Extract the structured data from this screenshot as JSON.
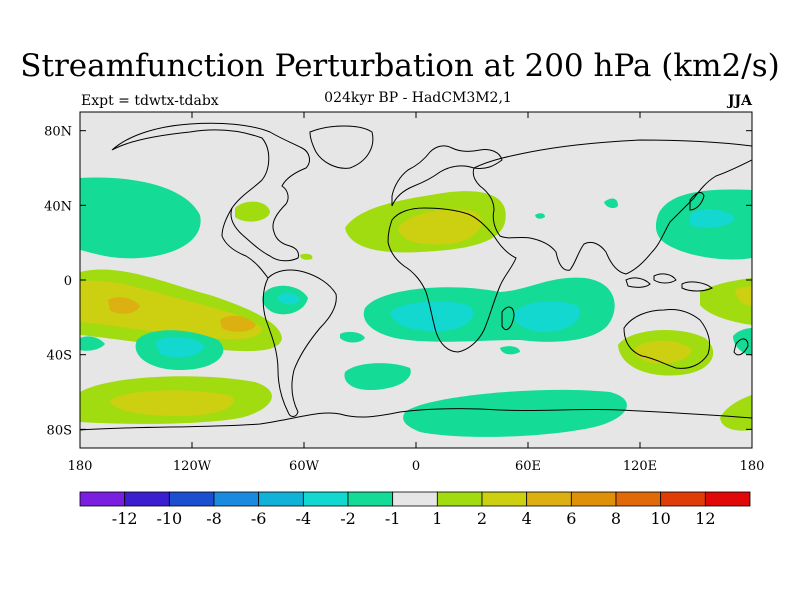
{
  "chart_data": {
    "type": "heatmap",
    "title": "Streamfunction Perturbation at 200 hPa (km2/s)",
    "subtitle": "024kyr BP - HadCM3M2,1",
    "experiment": "Expt = tdwtx-tdabx",
    "season": "JJA",
    "projection": "cylindrical equidistant",
    "lon_range": [
      -180,
      180
    ],
    "lat_range": [
      -90,
      90
    ],
    "x_ticks": [
      {
        "lon": -180,
        "label": "180"
      },
      {
        "lon": -120,
        "label": "120W"
      },
      {
        "lon": -60,
        "label": "60W"
      },
      {
        "lon": 0,
        "label": "0"
      },
      {
        "lon": 60,
        "label": "60E"
      },
      {
        "lon": 120,
        "label": "120E"
      },
      {
        "lon": 180,
        "label": "180"
      }
    ],
    "y_ticks": [
      {
        "lat": 80,
        "label": "80N"
      },
      {
        "lat": 40,
        "label": "40N"
      },
      {
        "lat": 0,
        "label": "0"
      },
      {
        "lat": -40,
        "label": "40S"
      },
      {
        "lat": -80,
        "label": "80S"
      }
    ],
    "colorbar": {
      "colors": [
        "#7a1fe0",
        "#3a1ed0",
        "#1c4fd0",
        "#1a8ae0",
        "#10b2d8",
        "#12d8d0",
        "#14dc96",
        "#e6e6e6",
        "#a0dc10",
        "#ccd010",
        "#dcb010",
        "#e09008",
        "#e06a08",
        "#e03c08",
        "#e00808"
      ],
      "labels": [
        {
          "value": -12,
          "label": "-12",
          "after_index": 1
        },
        {
          "value": -10,
          "label": "-10",
          "after_index": 2
        },
        {
          "value": -8,
          "label": "-8",
          "after_index": 3
        },
        {
          "value": -6,
          "label": "-6",
          "after_index": 4
        },
        {
          "value": -4,
          "label": "-4",
          "after_index": 5
        },
        {
          "value": -2,
          "label": "-2",
          "after_index": 6
        },
        {
          "value": -1,
          "label": "-1",
          "after_index": 7
        },
        {
          "value": 1,
          "label": "1",
          "after_index": 8
        },
        {
          "value": 2,
          "label": "2",
          "after_index": 9
        },
        {
          "value": 4,
          "label": "4",
          "after_index": 10
        },
        {
          "value": 6,
          "label": "6",
          "after_index": 11
        },
        {
          "value": 8,
          "label": "8",
          "after_index": 12
        },
        {
          "value": 10,
          "label": "10",
          "after_index": 13
        },
        {
          "value": 12,
          "label": "12",
          "after_index": 14
        }
      ]
    },
    "anomaly_centers": [
      {
        "name": "nw-atlantic-positive",
        "lon": -10,
        "lat": 28,
        "value": 1.5,
        "sign": "positive"
      },
      {
        "name": "mediterranean-positive",
        "lon": 15,
        "lat": 25,
        "value": 2.5,
        "sign": "positive"
      },
      {
        "name": "tropical-atlantic-africa-negative",
        "lon": 20,
        "lat": -18,
        "value": -3,
        "sign": "negative"
      },
      {
        "name": "indian-ocean-negative",
        "lon": 75,
        "lat": -15,
        "value": -3,
        "sign": "negative"
      },
      {
        "name": "east-pacific-positive-west",
        "lon": -160,
        "lat": -14,
        "value": 5,
        "sign": "positive"
      },
      {
        "name": "east-pacific-positive-east",
        "lon": -100,
        "lat": -22,
        "value": 5,
        "sign": "positive"
      },
      {
        "name": "south-pacific-negative",
        "lon": -130,
        "lat": -37,
        "value": -3,
        "sign": "negative"
      },
      {
        "name": "southern-ocean-positive",
        "lon": -140,
        "lat": -65,
        "value": 3,
        "sign": "positive"
      },
      {
        "name": "antarctic-negative",
        "lon": 50,
        "lat": -65,
        "value": -1.5,
        "sign": "negative"
      },
      {
        "name": "australia-positive",
        "lon": 125,
        "lat": -35,
        "value": 4,
        "sign": "positive"
      },
      {
        "name": "north-pacific-negative",
        "lon": 140,
        "lat": 30,
        "value": -3,
        "sign": "negative"
      },
      {
        "name": "north-pacific-central-negative",
        "lon": -170,
        "lat": 30,
        "value": -1.5,
        "sign": "negative"
      },
      {
        "name": "south-america-negative",
        "lon": -65,
        "lat": -10,
        "value": -3,
        "sign": "negative"
      },
      {
        "name": "west-pacific-positive",
        "lon": 175,
        "lat": -10,
        "value": 3,
        "sign": "positive"
      }
    ]
  }
}
